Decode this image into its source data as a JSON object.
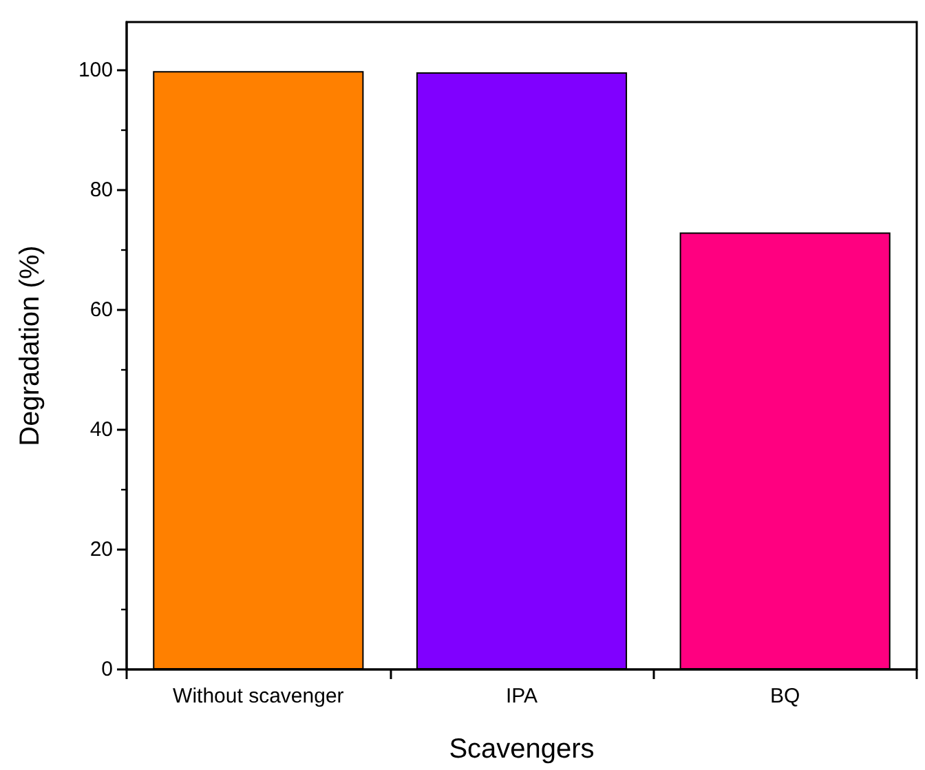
{
  "chart_data": {
    "type": "bar",
    "xlabel": "Scavengers",
    "ylabel": "Degradation (%)",
    "categories": [
      "Without scavenger",
      "IPA",
      "BQ"
    ],
    "values": [
      99.8,
      99.6,
      72.9
    ],
    "colors": [
      "#ff8000",
      "#8000ff",
      "#ff0080"
    ],
    "ylim": [
      0,
      108
    ],
    "yticks": [
      0,
      20,
      40,
      60,
      80,
      100
    ],
    "grid": false
  }
}
